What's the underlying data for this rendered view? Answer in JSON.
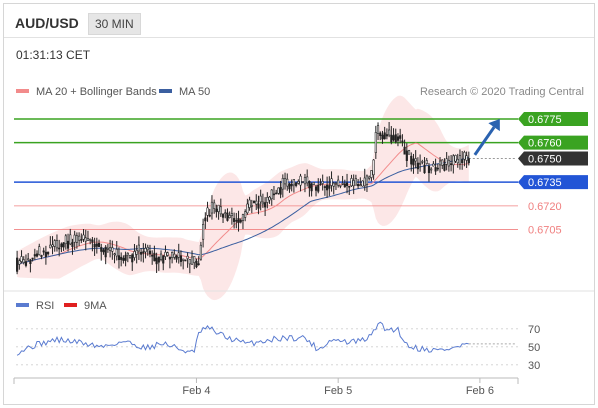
{
  "header": {
    "pair": "AUD/USD",
    "timeframe": "30 MIN",
    "time": "01:31:13 CET"
  },
  "colors": {
    "ma20": "#f28b8b",
    "ma50": "#3b5fa0",
    "band_fill": "#fbe3e3",
    "resistance": "#3aa321",
    "support_blue": "#2255d6",
    "support_red": "#f08080",
    "current": "#333333",
    "arrow": "#2a62b0",
    "rsi": "#5a7bd0",
    "rsi_ma": "#e02020"
  },
  "chart_data": [
    {
      "type": "candlestick",
      "legend": [
        {
          "name": "MA 20 + Bollinger Bands",
          "color": "#f28b8b"
        },
        {
          "name": "MA 50",
          "color": "#3b5fa0"
        }
      ],
      "legend_position": "top-left",
      "credit": "Research © 2020 Trading Central",
      "x_ticks": [
        "Feb 4",
        "Feb 5",
        "Feb 6"
      ],
      "x_tick_index": [
        81,
        145,
        209
      ],
      "ylim": [
        0.6668,
        0.6787
      ],
      "levels": [
        {
          "value": 0.6775,
          "label": "0.6775",
          "kind": "resistance"
        },
        {
          "value": 0.676,
          "label": "0.6760",
          "kind": "resistance"
        },
        {
          "value": 0.675,
          "label": "0.6750",
          "kind": "current"
        },
        {
          "value": 0.6735,
          "label": "0.6735",
          "kind": "support_blue"
        },
        {
          "value": 0.672,
          "label": "0.6720",
          "kind": "support_red"
        },
        {
          "value": 0.6705,
          "label": "0.6705",
          "kind": "support_red"
        }
      ],
      "close_anchors": [
        [
          0,
          0.6683
        ],
        [
          10,
          0.669
        ],
        [
          22,
          0.6697
        ],
        [
          32,
          0.6699
        ],
        [
          42,
          0.669
        ],
        [
          50,
          0.6687
        ],
        [
          56,
          0.6692
        ],
        [
          64,
          0.6687
        ],
        [
          72,
          0.6688
        ],
        [
          78,
          0.6684
        ],
        [
          82,
          0.6685
        ],
        [
          84,
          0.6712
        ],
        [
          88,
          0.6718
        ],
        [
          96,
          0.6713
        ],
        [
          100,
          0.671
        ],
        [
          106,
          0.6722
        ],
        [
          112,
          0.6723
        ],
        [
          120,
          0.6733
        ],
        [
          130,
          0.6735
        ],
        [
          134,
          0.6732
        ],
        [
          140,
          0.6734
        ],
        [
          150,
          0.6733
        ],
        [
          156,
          0.6733
        ],
        [
          160,
          0.674
        ],
        [
          162,
          0.6767
        ],
        [
          166,
          0.6765
        ],
        [
          172,
          0.6764
        ],
        [
          176,
          0.6752
        ],
        [
          180,
          0.6748
        ],
        [
          186,
          0.6744
        ],
        [
          192,
          0.6746
        ],
        [
          200,
          0.6748
        ],
        [
          204,
          0.6751
        ]
      ],
      "forecast": {
        "from": [
          204,
          0.6751
        ],
        "to": [
          218,
          0.6775
        ]
      }
    },
    {
      "type": "line",
      "legend": [
        {
          "name": "RSI",
          "color": "#5a7bd0"
        },
        {
          "name": "9MA",
          "color": "#e02020"
        }
      ],
      "legend_position": "top-left",
      "ylim": [
        22,
        82
      ],
      "y_ticks": [
        "70",
        "50",
        "30"
      ],
      "y_tick_values": [
        70,
        50,
        30
      ],
      "values_anchors": [
        [
          0,
          44
        ],
        [
          8,
          52
        ],
        [
          18,
          58
        ],
        [
          28,
          55
        ],
        [
          38,
          50
        ],
        [
          48,
          56
        ],
        [
          58,
          49
        ],
        [
          66,
          54
        ],
        [
          74,
          47
        ],
        [
          80,
          43
        ],
        [
          82,
          66
        ],
        [
          86,
          71
        ],
        [
          94,
          61
        ],
        [
          104,
          53
        ],
        [
          112,
          57
        ],
        [
          120,
          60
        ],
        [
          130,
          60
        ],
        [
          136,
          47
        ],
        [
          142,
          58
        ],
        [
          150,
          55
        ],
        [
          156,
          57
        ],
        [
          160,
          62
        ],
        [
          163,
          77
        ],
        [
          166,
          70
        ],
        [
          172,
          69
        ],
        [
          176,
          52
        ],
        [
          182,
          48
        ],
        [
          190,
          46
        ],
        [
          198,
          49
        ],
        [
          204,
          54
        ]
      ]
    }
  ]
}
